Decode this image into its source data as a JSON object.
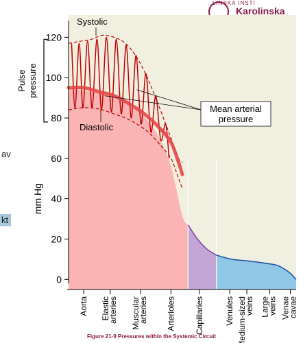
{
  "page": {
    "logo_text": "LINSKA INSTI",
    "logo_word": "Karolinska",
    "left_fragment_1": "av",
    "left_fragment_2": "kt",
    "caption": "Figure 21-9 Pressures within the Systemic Circuit"
  },
  "colors": {
    "panel": "#f0efe0",
    "arterial_fill": "#fbb4b4",
    "capillary_fill": "#c3a6d6",
    "venous_fill": "#90c8e6",
    "pulse_line": "#c00000",
    "mean_line": "#e44848",
    "venous_line": "#2255aa",
    "capillary_line": "#7a4aa8"
  },
  "chart_data": {
    "type": "line",
    "title": "",
    "ylabel": "mm Hg",
    "pulse_ylabel": "Pulse pressure",
    "y_ticks": [
      0,
      20,
      40,
      60,
      80,
      100,
      120
    ],
    "ylim": [
      -5,
      131
    ],
    "categories": [
      "Aorta",
      "Elastic arteries",
      "Muscular arteries",
      "Arterioles",
      "Capillaries",
      "Venules",
      "Medium-sized veins",
      "Large veins",
      "Venae cavae"
    ],
    "category_x": [
      0.4,
      1.1,
      1.9,
      2.7,
      3.45,
      4.25,
      4.7,
      5.3,
      5.85
    ],
    "annotations": {
      "systolic": "Systolic",
      "diastolic": "Diastolic",
      "mean": "Mean arterial pressure"
    },
    "systolic_envelope": {
      "x": [
        0,
        0.3,
        0.6,
        0.9,
        1.2,
        1.5,
        1.8,
        2.1,
        2.4,
        2.7,
        2.9,
        3.0
      ],
      "y": [
        117,
        118,
        119,
        121,
        120,
        117,
        110,
        99,
        85,
        70,
        60,
        58
      ]
    },
    "diastolic_envelope": {
      "x": [
        0,
        0.3,
        0.6,
        0.9,
        1.2,
        1.5,
        1.8,
        2.1,
        2.4,
        2.7,
        2.9,
        3.0
      ],
      "y": [
        84,
        85,
        85,
        84,
        82,
        80,
        77,
        73,
        67,
        60,
        50,
        45
      ]
    },
    "mean_pressure": {
      "x": [
        0,
        0.4,
        0.8,
        1.2,
        1.6,
        2.0,
        2.4,
        2.7,
        2.9,
        3.0
      ],
      "y": [
        95,
        95,
        93,
        91,
        87,
        82,
        75,
        68,
        58,
        52
      ]
    },
    "pulse_peaks": {
      "x": [
        0.08,
        0.28,
        0.5,
        0.75,
        1.0,
        1.26,
        1.52,
        1.78,
        2.04,
        2.3,
        2.56
      ],
      "y": [
        117,
        117,
        118,
        119,
        120,
        119,
        116,
        111,
        102,
        91,
        77
      ]
    },
    "pulse_troughs": {
      "x": [
        0.17,
        0.38,
        0.62,
        0.87,
        1.13,
        1.39,
        1.65,
        1.91,
        2.17,
        2.43,
        2.65
      ],
      "y": [
        85,
        85,
        85,
        84,
        83,
        82,
        80,
        77,
        73,
        69,
        60
      ]
    },
    "arterial_profile": {
      "x": [
        0,
        0.6,
        1.2,
        1.8,
        2.2,
        2.5,
        2.7,
        2.85,
        2.95,
        3.05,
        3.15
      ],
      "y": [
        95,
        93,
        91,
        84,
        76,
        66,
        56,
        44,
        35,
        29,
        27
      ]
    },
    "capillary_profile": {
      "x": [
        3.15,
        3.4,
        3.65,
        3.9
      ],
      "y": [
        27,
        20,
        15,
        12
      ]
    },
    "venous_profile": {
      "x": [
        3.9,
        4.3,
        4.8,
        5.2,
        5.5,
        5.7,
        5.85,
        5.95,
        6.0
      ],
      "y": [
        12,
        10,
        9,
        8,
        7,
        5,
        3,
        1,
        0
      ]
    },
    "xlim": [
      0,
      6.0
    ],
    "regions": [
      {
        "name": "arterial",
        "x": [
          0,
          3.15
        ]
      },
      {
        "name": "capillaries",
        "x": [
          3.15,
          3.9
        ]
      },
      {
        "name": "venous",
        "x": [
          3.9,
          6.0
        ]
      }
    ]
  }
}
